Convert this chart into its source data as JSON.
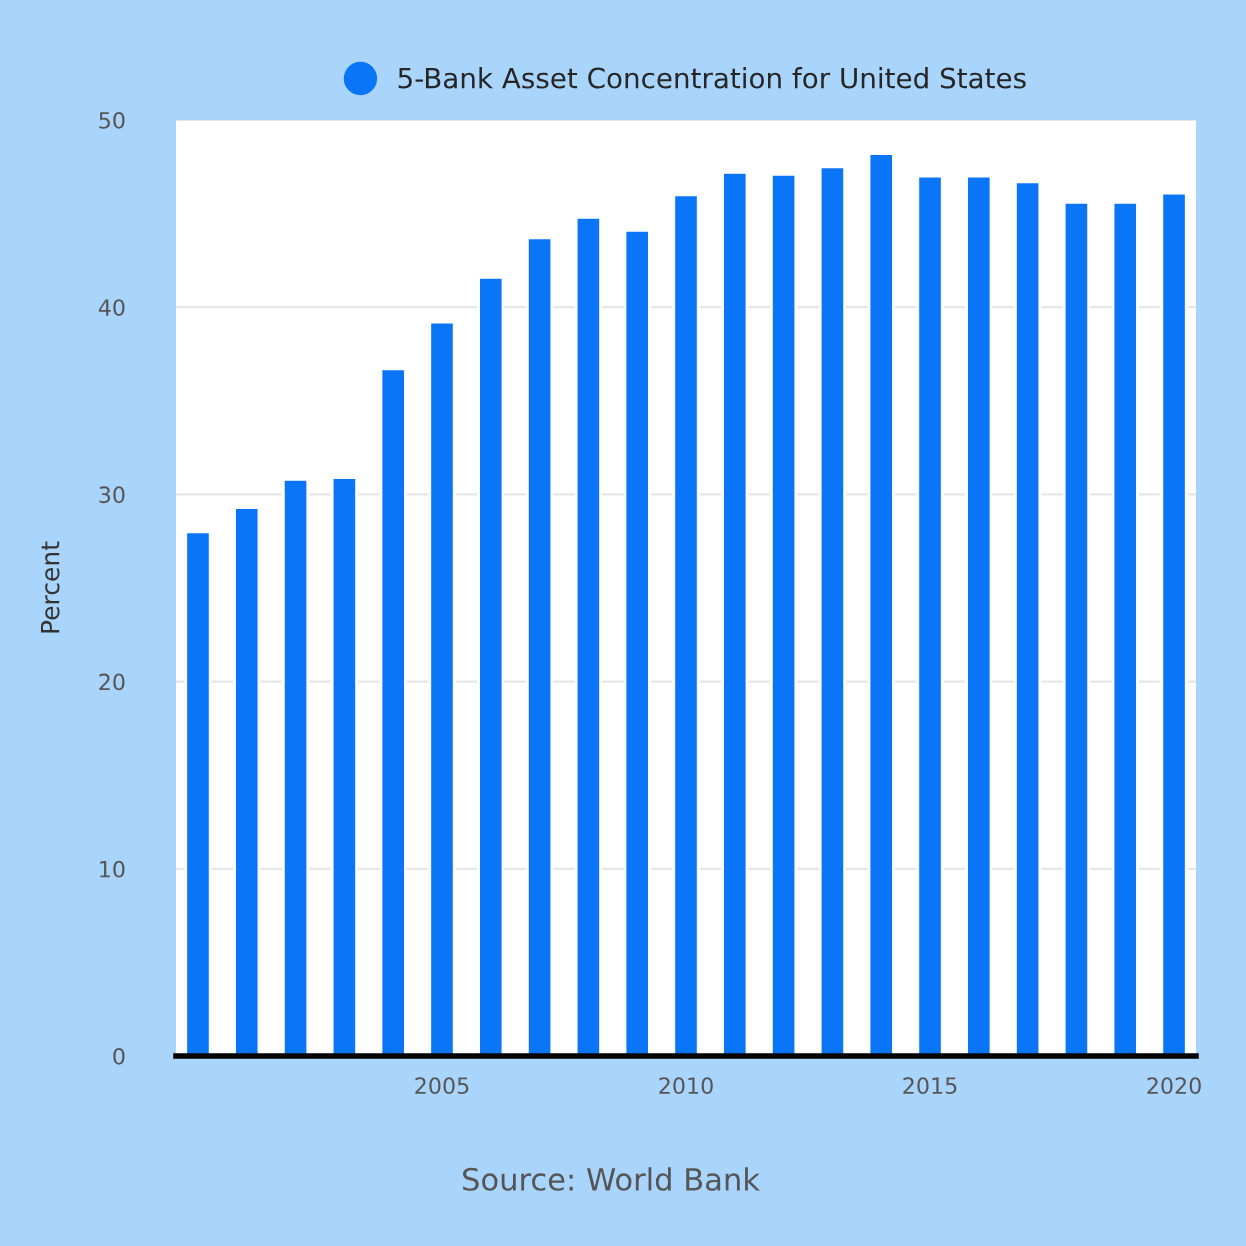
{
  "chart_data": {
    "type": "bar",
    "x": [
      2000,
      2001,
      2002,
      2003,
      2004,
      2005,
      2006,
      2007,
      2008,
      2009,
      2010,
      2011,
      2012,
      2013,
      2014,
      2015,
      2016,
      2017,
      2018,
      2019,
      2020
    ],
    "series": [
      {
        "name": "5-Bank Asset Concentration for United States",
        "color": "#0a76f7",
        "values": [
          28.0,
          29.3,
          30.8,
          30.9,
          36.7,
          39.2,
          41.6,
          43.7,
          44.8,
          44.1,
          46.0,
          47.2,
          47.1,
          47.5,
          48.2,
          47.0,
          47.0,
          46.7,
          45.6,
          45.6,
          46.1
        ]
      }
    ],
    "ylabel": "Percent",
    "xlim": [
      1999.55,
      2020.45
    ],
    "xticks": [
      2005,
      2010,
      2015,
      2020
    ],
    "ylim": [
      0,
      50
    ],
    "yticks": [
      0,
      10,
      20,
      30,
      40,
      50
    ],
    "grid": "y",
    "legend": "top",
    "annotations": [
      "Source: World Bank"
    ]
  }
}
